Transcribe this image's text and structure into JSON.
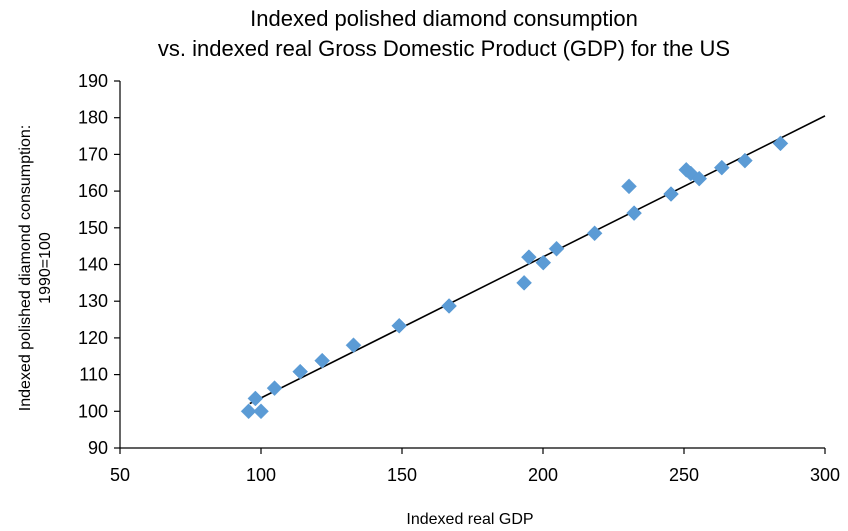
{
  "chart_data": {
    "type": "scatter",
    "title": [
      "Indexed polished diamond consumption",
      "vs. indexed real Gross Domestic Product (GDP) for the US"
    ],
    "xlabel": "Indexed real GDP",
    "ylabel": [
      "Indexed polished diamond consumption:",
      "1990=100"
    ],
    "xlim": [
      50,
      300
    ],
    "ylim": [
      90,
      190
    ],
    "x_ticks": [
      50,
      100,
      150,
      200,
      250,
      300
    ],
    "y_ticks": [
      90,
      100,
      110,
      120,
      130,
      140,
      150,
      160,
      170,
      180,
      190
    ],
    "grid": false,
    "legend": "none",
    "series": [
      {
        "marker": "diamond",
        "color": "#5b9bd5",
        "points": [
          {
            "x": 95.6,
            "y": 100.0
          },
          {
            "x": 100.0,
            "y": 100.0
          },
          {
            "x": 98.0,
            "y": 103.5
          },
          {
            "x": 104.8,
            "y": 106.3
          },
          {
            "x": 113.9,
            "y": 110.8
          },
          {
            "x": 121.7,
            "y": 113.8
          },
          {
            "x": 132.8,
            "y": 118.0
          },
          {
            "x": 149.0,
            "y": 123.3
          },
          {
            "x": 166.7,
            "y": 128.7
          },
          {
            "x": 193.3,
            "y": 135.0
          },
          {
            "x": 195.0,
            "y": 142.0
          },
          {
            "x": 200.1,
            "y": 140.5
          },
          {
            "x": 204.8,
            "y": 144.3
          },
          {
            "x": 218.3,
            "y": 148.5
          },
          {
            "x": 230.5,
            "y": 161.3
          },
          {
            "x": 232.3,
            "y": 154.0
          },
          {
            "x": 245.4,
            "y": 159.2
          },
          {
            "x": 250.8,
            "y": 165.8
          },
          {
            "x": 252.4,
            "y": 164.8
          },
          {
            "x": 255.4,
            "y": 163.4
          },
          {
            "x": 263.4,
            "y": 166.4
          },
          {
            "x": 271.6,
            "y": 168.3
          },
          {
            "x": 284.2,
            "y": 173.0
          }
        ]
      }
    ],
    "trendline": {
      "type": "linear",
      "color": "#000000",
      "x": [
        96,
        300
      ],
      "y": [
        102.1,
        180.5
      ]
    }
  }
}
